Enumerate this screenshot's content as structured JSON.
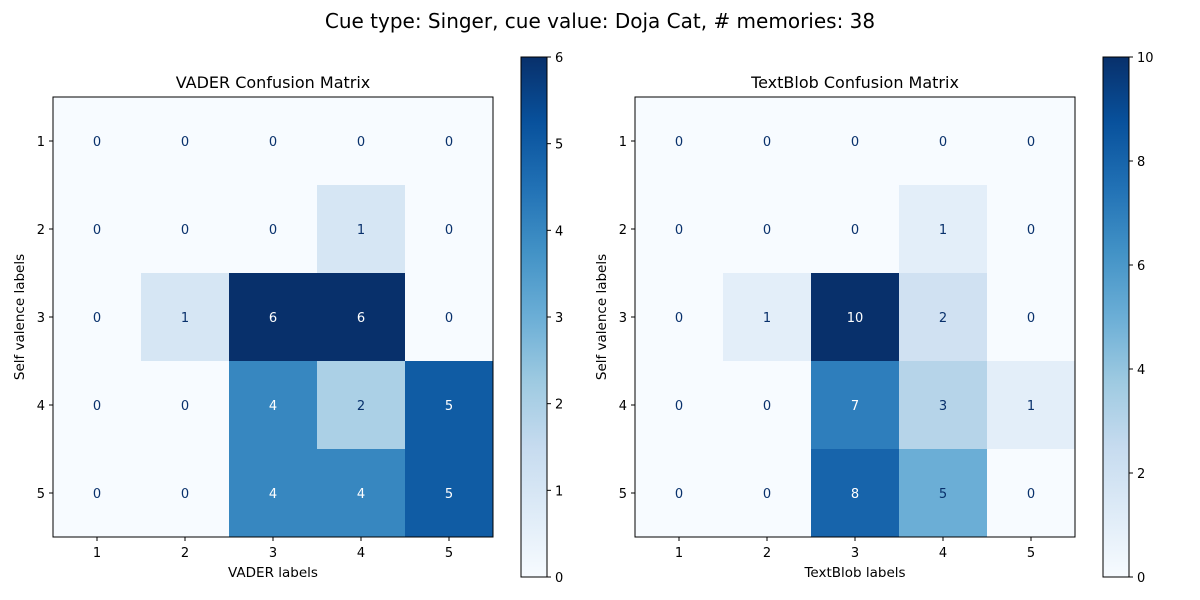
{
  "figure": {
    "suptitle": "Cue type: Singer, cue value: Doja Cat, # memories: 38"
  },
  "chart_data": [
    {
      "type": "heatmap",
      "title": "VADER Confusion Matrix",
      "xlabel": "VADER labels",
      "ylabel": "Self valence labels",
      "x_categories": [
        "1",
        "2",
        "3",
        "4",
        "5"
      ],
      "y_categories": [
        "1",
        "2",
        "3",
        "4",
        "5"
      ],
      "values": [
        [
          0,
          0,
          0,
          0,
          0
        ],
        [
          0,
          0,
          0,
          1,
          0
        ],
        [
          0,
          1,
          6,
          6,
          0
        ],
        [
          0,
          0,
          4,
          2,
          5
        ],
        [
          0,
          0,
          4,
          4,
          5
        ]
      ],
      "colormap": "Blues",
      "vmin": 0,
      "vmax": 6,
      "colorbar_ticks": [
        "0",
        "1",
        "2",
        "3",
        "4",
        "5",
        "6"
      ]
    },
    {
      "type": "heatmap",
      "title": "TextBlob Confusion Matrix",
      "xlabel": "TextBlob labels",
      "ylabel": "Self valence labels",
      "x_categories": [
        "1",
        "2",
        "3",
        "4",
        "5"
      ],
      "y_categories": [
        "1",
        "2",
        "3",
        "4",
        "5"
      ],
      "values": [
        [
          0,
          0,
          0,
          0,
          0
        ],
        [
          0,
          0,
          0,
          1,
          0
        ],
        [
          0,
          1,
          10,
          2,
          0
        ],
        [
          0,
          0,
          7,
          3,
          1
        ],
        [
          0,
          0,
          8,
          5,
          0
        ]
      ],
      "colormap": "Blues",
      "vmin": 0,
      "vmax": 10,
      "colorbar_ticks": [
        "0",
        "2",
        "4",
        "6",
        "8",
        "10"
      ]
    }
  ]
}
